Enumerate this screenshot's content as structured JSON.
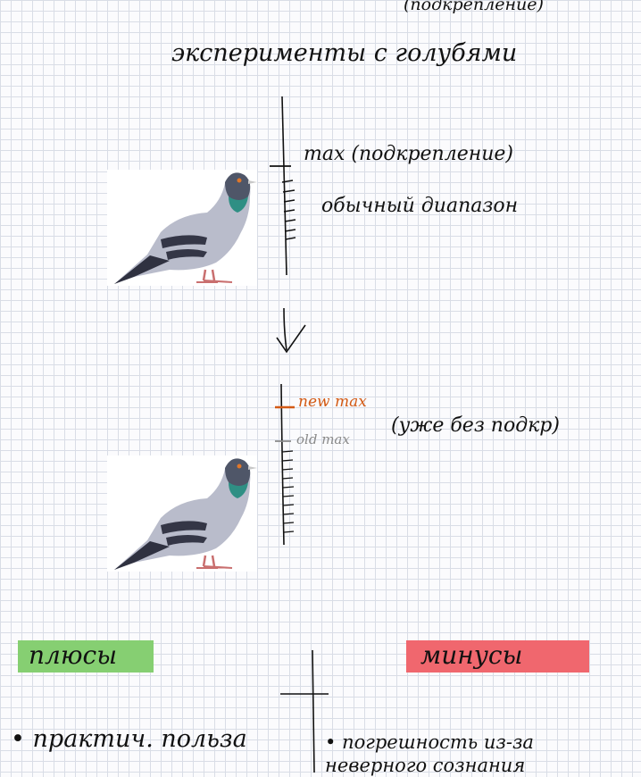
{
  "page": {
    "top_note": "(подкрепление)",
    "title": "эксперименты с голубями"
  },
  "diagram_1": {
    "max_label": "max (подкрепление)",
    "range_label": "обычный диапазон"
  },
  "diagram_2": {
    "new_max": "new max",
    "old_max": "old max",
    "note": "(уже без подкр)"
  },
  "colors": {
    "new_max": "#d35a14",
    "old_max": "#8a8a8a",
    "pros_highlight": "#86cf72",
    "cons_highlight": "#f0676e"
  },
  "table": {
    "pros_header": "плюсы",
    "cons_header": "минусы",
    "pros_items": [
      "практич. польза"
    ],
    "cons_items": [
      "погрешность из-за неверного сознания"
    ]
  }
}
